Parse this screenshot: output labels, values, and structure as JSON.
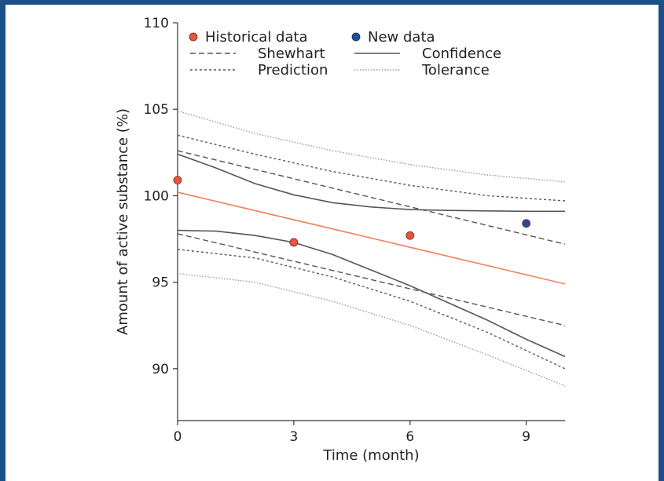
{
  "chart_data": {
    "type": "scatter",
    "title": "",
    "xlabel": "Time (month)",
    "ylabel": "Amount of active substance (%)",
    "xlim": [
      0,
      10
    ],
    "ylim": [
      87,
      110
    ],
    "xticks": [
      0,
      3,
      6,
      9
    ],
    "yticks": [
      90,
      95,
      100,
      105,
      110
    ],
    "grid": false,
    "legend_position": "top-left",
    "series": [
      {
        "name": "Historical data",
        "kind": "points",
        "color": "#e8553c",
        "points": [
          [
            0,
            100.9
          ],
          [
            3,
            97.3
          ],
          [
            6,
            97.7
          ]
        ]
      },
      {
        "name": "New data",
        "kind": "points",
        "color": "#1f4f9a",
        "points": [
          [
            9,
            98.4
          ]
        ]
      },
      {
        "kind": "line",
        "style": "solid",
        "color": "#f08060",
        "points": [
          [
            0,
            100.2
          ],
          [
            10,
            94.9
          ]
        ]
      },
      {
        "name": "Shewhart",
        "kind": "line",
        "style": "dashed",
        "color": "#555555",
        "points": [
          [
            0,
            102.6
          ],
          [
            10,
            97.2
          ]
        ]
      },
      {
        "name": "Shewhart",
        "kind": "line",
        "style": "dashed",
        "color": "#555555",
        "points": [
          [
            0,
            97.8
          ],
          [
            10,
            92.5
          ]
        ]
      },
      {
        "name": "Confidence",
        "kind": "line",
        "style": "solid",
        "color": "#555555",
        "points": [
          [
            0,
            102.4
          ],
          [
            1,
            101.6
          ],
          [
            2,
            100.7
          ],
          [
            3,
            100.05
          ],
          [
            4,
            99.6
          ],
          [
            5,
            99.35
          ],
          [
            6,
            99.2
          ],
          [
            7,
            99.15
          ],
          [
            8,
            99.12
          ],
          [
            9,
            99.1
          ],
          [
            10,
            99.1
          ]
        ]
      },
      {
        "name": "Confidence",
        "kind": "line",
        "style": "solid",
        "color": "#555555",
        "points": [
          [
            0,
            98.0
          ],
          [
            1,
            97.95
          ],
          [
            2,
            97.7
          ],
          [
            3,
            97.3
          ],
          [
            4,
            96.6
          ],
          [
            5,
            95.7
          ],
          [
            6,
            94.8
          ],
          [
            7,
            93.8
          ],
          [
            8,
            92.8
          ],
          [
            9,
            91.7
          ],
          [
            10,
            90.7
          ]
        ]
      },
      {
        "name": "Prediction",
        "kind": "line",
        "style": "dotted",
        "color": "#555555",
        "points": [
          [
            0,
            103.5
          ],
          [
            2,
            102.4
          ],
          [
            4,
            101.4
          ],
          [
            6,
            100.6
          ],
          [
            8,
            100.0
          ],
          [
            10,
            99.7
          ]
        ]
      },
      {
        "name": "Prediction",
        "kind": "line",
        "style": "dotted",
        "color": "#555555",
        "points": [
          [
            0,
            96.9
          ],
          [
            2,
            96.4
          ],
          [
            4,
            95.3
          ],
          [
            6,
            93.9
          ],
          [
            8,
            92.1
          ],
          [
            10,
            90.0
          ]
        ]
      },
      {
        "name": "Tolerance",
        "kind": "line",
        "style": "fine-dotted",
        "color": "#999999",
        "points": [
          [
            0,
            104.9
          ],
          [
            2,
            103.6
          ],
          [
            4,
            102.6
          ],
          [
            6,
            101.8
          ],
          [
            8,
            101.2
          ],
          [
            10,
            100.8
          ]
        ]
      },
      {
        "name": "Tolerance",
        "kind": "line",
        "style": "fine-dotted",
        "color": "#999999",
        "points": [
          [
            0,
            95.5
          ],
          [
            2,
            95.0
          ],
          [
            4,
            93.9
          ],
          [
            6,
            92.5
          ],
          [
            8,
            90.8
          ],
          [
            10,
            89.0
          ]
        ]
      }
    ],
    "legend": [
      {
        "label": "Historical data",
        "marker": "circle",
        "color": "#e8553c"
      },
      {
        "label": "New data",
        "marker": "circle",
        "color": "#1f4f9a"
      },
      {
        "label": "Shewhart",
        "style": "dashed",
        "color": "#555555"
      },
      {
        "label": "Confidence",
        "style": "solid",
        "color": "#555555"
      },
      {
        "label": "Prediction",
        "style": "dotted",
        "color": "#555555"
      },
      {
        "label": "Tolerance",
        "style": "fine-dotted",
        "color": "#999999"
      }
    ]
  }
}
